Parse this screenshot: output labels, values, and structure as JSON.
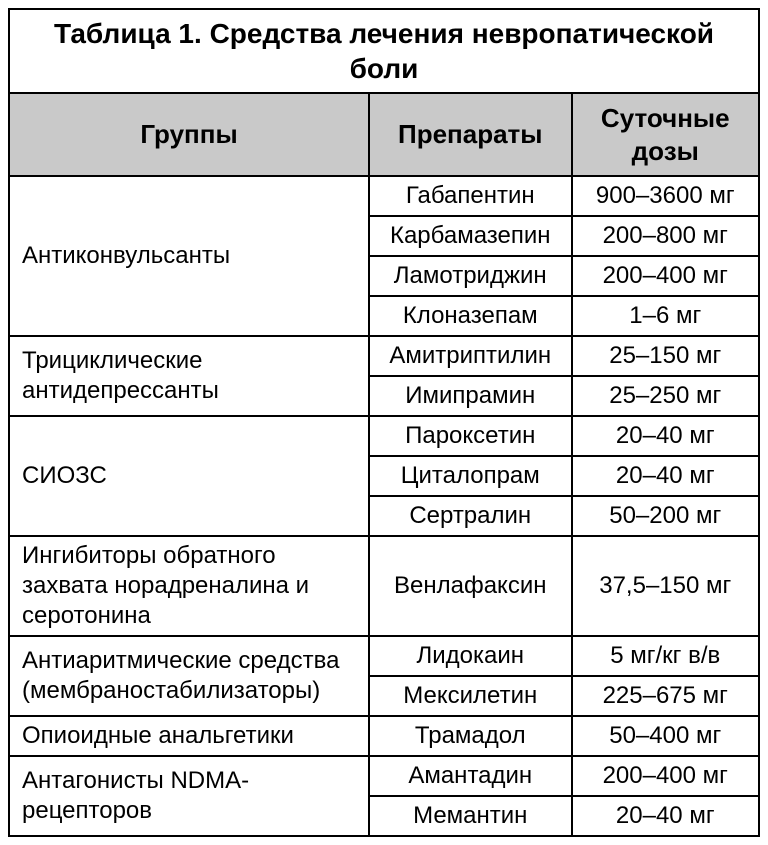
{
  "title": "Таблица 1. Средства лечения невропатической боли",
  "columns": [
    "Группы",
    "Препараты",
    "Суточные дозы"
  ],
  "header_bg": "#c9c9c9",
  "border_color": "#000000",
  "font_family": "Arial",
  "title_fontsize": 28,
  "header_fontsize": 26,
  "cell_fontsize": 24,
  "groups": [
    {
      "name": "Антиконвульсанты",
      "rows": [
        {
          "drug": "Габапентин",
          "dose": "900–3600 мг"
        },
        {
          "drug": "Карбамазепин",
          "dose": "200–800 мг"
        },
        {
          "drug": "Ламотриджин",
          "dose": "200–400 мг"
        },
        {
          "drug": "Клоназепам",
          "dose": "1–6 мг"
        }
      ]
    },
    {
      "name": "Трициклические антидепрессанты",
      "rows": [
        {
          "drug": "Амитриптилин",
          "dose": "25–150 мг"
        },
        {
          "drug": "Имипрамин",
          "dose": "25–250 мг"
        }
      ]
    },
    {
      "name": "СИОЗС",
      "rows": [
        {
          "drug": "Пароксетин",
          "dose": "20–40 мг"
        },
        {
          "drug": "Циталопрам",
          "dose": "20–40 мг"
        },
        {
          "drug": "Сертралин",
          "dose": "50–200 мг"
        }
      ]
    },
    {
      "name": "Ингибиторы обратного захвата норадреналина и серотонина",
      "rows": [
        {
          "drug": "Венлафаксин",
          "dose": "37,5–150 мг"
        }
      ]
    },
    {
      "name": "Антиаритмические средства (мембраностабилизаторы)",
      "rows": [
        {
          "drug": "Лидокаин",
          "dose": "5 мг/кг в/в"
        },
        {
          "drug": "Мексилетин",
          "dose": "225–675 мг"
        }
      ]
    },
    {
      "name": "Опиоидные анальгетики",
      "rows": [
        {
          "drug": "Трамадол",
          "dose": "50–400 мг"
        }
      ]
    },
    {
      "name": "Антагонисты NDMA-рецепторов",
      "rows": [
        {
          "drug": "Амантадин",
          "dose": "200–400 мг"
        },
        {
          "drug": "Мемантин",
          "dose": "20–40 мг"
        }
      ]
    }
  ]
}
